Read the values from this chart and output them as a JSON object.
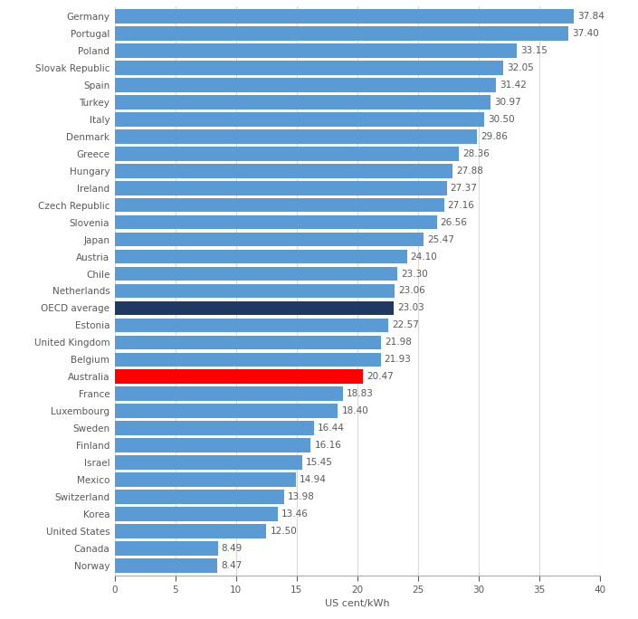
{
  "countries": [
    "Germany",
    "Portugal",
    "Poland",
    "Slovak Republic",
    "Spain",
    "Turkey",
    "Italy",
    "Denmark",
    "Greece",
    "Hungary",
    "Ireland",
    "Czech Republic",
    "Slovenia",
    "Japan",
    "Austria",
    "Chile",
    "Netherlands",
    "OECD average",
    "Estonia",
    "United Kingdom",
    "Belgium",
    "Australia",
    "France",
    "Luxembourg",
    "Sweden",
    "Finland",
    "Israel",
    "Mexico",
    "Switzerland",
    "Korea",
    "United States",
    "Canada",
    "Norway"
  ],
  "values": [
    37.84,
    37.4,
    33.15,
    32.05,
    31.42,
    30.97,
    30.5,
    29.86,
    28.36,
    27.88,
    27.37,
    27.16,
    26.56,
    25.47,
    24.1,
    23.3,
    23.06,
    23.03,
    22.57,
    21.98,
    21.93,
    20.47,
    18.83,
    18.4,
    16.44,
    16.16,
    15.45,
    14.94,
    13.98,
    13.46,
    12.5,
    8.49,
    8.47
  ],
  "bar_color_default": "#5b9bd5",
  "bar_color_oecd": "#1f3864",
  "bar_color_australia": "#ff0000",
  "xlabel": "US cent/kWh",
  "xlim": [
    0,
    40
  ],
  "xticks": [
    0,
    5,
    10,
    15,
    20,
    25,
    30,
    35,
    40
  ],
  "background_color": "#ffffff",
  "label_fontsize": 7.5,
  "value_fontsize": 7.5,
  "bar_height": 0.82
}
